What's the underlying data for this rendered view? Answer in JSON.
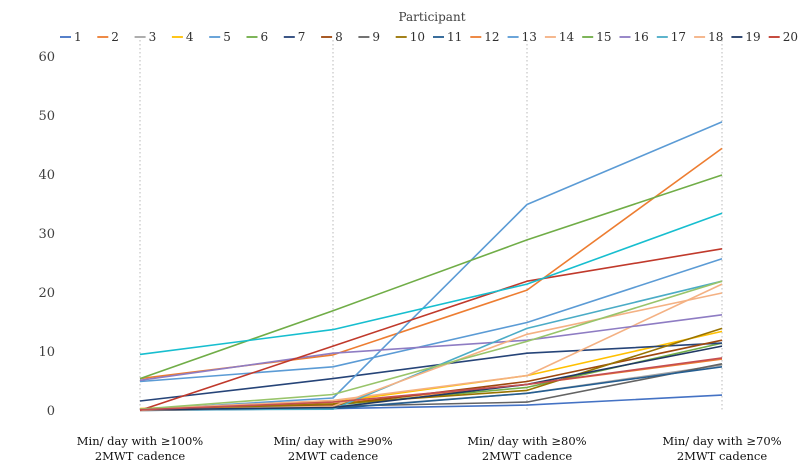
{
  "chart_data": {
    "type": "line",
    "title": "",
    "xlabel": "",
    "ylabel": "",
    "ylim": [
      0,
      60
    ],
    "yticks": [
      0,
      10,
      20,
      30,
      40,
      50,
      60
    ],
    "grid": "vertical-dotted-at-categories",
    "legend_title": "Participant",
    "legend_position": "top",
    "categories": [
      [
        "Min/ day with ≥100%",
        "2MWT cadence"
      ],
      [
        "Min/ day with ≥90%",
        "2MWT cadence"
      ],
      [
        "Min/ day with ≥80%",
        "2MWT cadence"
      ],
      [
        "Min/ day with ≥70%",
        "2MWT cadence"
      ]
    ],
    "series": [
      {
        "name": "1",
        "color": "#4472C4",
        "values": [
          0.2,
          0.4,
          1.0,
          2.7
        ]
      },
      {
        "name": "2",
        "color": "#ED7D31",
        "values": [
          0.3,
          1.2,
          4.5,
          8.8
        ]
      },
      {
        "name": "3",
        "color": "#A5A5A5",
        "values": [
          0.1,
          0.5,
          3.0,
          7.8
        ]
      },
      {
        "name": "4",
        "color": "#FFC000",
        "values": [
          0.4,
          1.5,
          6.0,
          13.5
        ]
      },
      {
        "name": "5",
        "color": "#5B9BD5",
        "values": [
          5.0,
          7.5,
          15.0,
          25.8
        ]
      },
      {
        "name": "6",
        "color": "#70AD47",
        "values": [
          0.2,
          1.0,
          4.0,
          11.5
        ]
      },
      {
        "name": "7",
        "color": "#264478",
        "values": [
          1.7,
          5.5,
          9.8,
          11.5
        ]
      },
      {
        "name": "8",
        "color": "#9E480E",
        "values": [
          0.2,
          1.0,
          5.0,
          12.0
        ]
      },
      {
        "name": "9",
        "color": "#636363",
        "values": [
          0.3,
          0.8,
          1.5,
          8.0
        ]
      },
      {
        "name": "10",
        "color": "#997300",
        "values": [
          0.2,
          1.2,
          3.5,
          14.0
        ]
      },
      {
        "name": "11",
        "color": "#255E91",
        "values": [
          0.1,
          0.4,
          3.0,
          7.5
        ]
      },
      {
        "name": "12",
        "color": "#ED7D31",
        "values": [
          5.5,
          9.5,
          20.5,
          44.5
        ]
      },
      {
        "name": "13",
        "color": "#5B9BD5",
        "values": [
          0.2,
          2.2,
          35.0,
          49.0
        ]
      },
      {
        "name": "14",
        "color": "#F4B183",
        "values": [
          0.3,
          1.8,
          6.0,
          21.5
        ]
      },
      {
        "name": "15",
        "color": "#70AD47",
        "values": [
          5.5,
          17.0,
          29.0,
          40.0
        ]
      },
      {
        "name": "16",
        "color": "#8E7CC3",
        "values": [
          5.2,
          9.8,
          12.0,
          16.3
        ]
      },
      {
        "name": "17",
        "color": "#4BACC6",
        "values": [
          0.2,
          0.3,
          14.0,
          22.0
        ]
      },
      {
        "name": "18",
        "color": "#F4B183",
        "values": [
          0.1,
          0.8,
          13.0,
          20.0
        ]
      },
      {
        "name": "19",
        "color": "#1F3864",
        "values": [
          0.2,
          0.6,
          4.5,
          11.0
        ]
      },
      {
        "name": "20",
        "color": "#C0392B",
        "values": [
          0.1,
          11.0,
          22.0,
          27.5
        ]
      },
      {
        "name": "",
        "color": "#17BECF",
        "values": [
          9.6,
          13.8,
          21.5,
          33.5
        ]
      },
      {
        "name": "",
        "color": "#98C46A",
        "values": [
          0.3,
          2.8,
          11.8,
          22.0
        ]
      },
      {
        "name": "",
        "color": "#C44E52",
        "values": [
          0.2,
          1.5,
          4.5,
          9.0
        ]
      }
    ]
  }
}
